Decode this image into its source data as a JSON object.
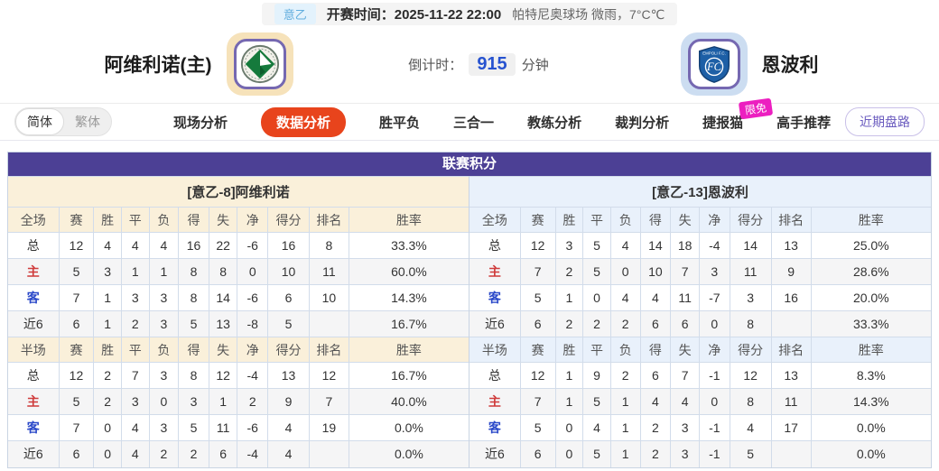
{
  "colors": {
    "title_purple": "#4c4095",
    "active_tab": "#e8441c",
    "home_theme": "#faf0da",
    "away_theme": "#e9f1fb",
    "home_label_red": "#cf3b3b",
    "away_label_blue": "#2b49c9",
    "badge_magenta": "#ec1fc0",
    "countdown_blue": "#2753d0"
  },
  "top_bar": {
    "league_badge": "意乙",
    "kickoff_label": "开赛时间：",
    "kickoff_time": "2025-11-22 22:00",
    "venue_weather": "帕特尼奥球场  微雨，7°C℃"
  },
  "match_header": {
    "home_team": "阿维利诺(主)",
    "away_team": "恩波利",
    "countdown_label": "倒计时：",
    "countdown_value": "915",
    "countdown_unit": "分钟"
  },
  "nav": {
    "lang_toggle": {
      "simplified": "简体",
      "traditional": "繁体"
    },
    "tabs": [
      {
        "label": "现场分析",
        "active": false
      },
      {
        "label": "数据分析",
        "active": true
      },
      {
        "label": "胜平负",
        "active": false
      },
      {
        "label": "三合一",
        "active": false
      },
      {
        "label": "教练分析",
        "active": false
      },
      {
        "label": "裁判分析",
        "active": false
      },
      {
        "label": "捷报猫",
        "active": false,
        "badge": "限免"
      },
      {
        "label": "高手推荐",
        "active": false
      }
    ],
    "recent_odds_button": "近期盘路"
  },
  "league_table": {
    "title": "联赛积分",
    "columns_full": [
      "全场",
      "赛",
      "胜",
      "平",
      "负",
      "得",
      "失",
      "净",
      "得分",
      "排名",
      "胜率"
    ],
    "columns_half": [
      "半场",
      "赛",
      "胜",
      "平",
      "负",
      "得",
      "失",
      "净",
      "得分",
      "排名",
      "胜率"
    ],
    "home": {
      "header": "[意乙-8]阿维利诺",
      "full": [
        {
          "label": "总",
          "cells": [
            "12",
            "4",
            "4",
            "4",
            "16",
            "22",
            "-6",
            "16",
            "8",
            "33.3%"
          ]
        },
        {
          "label": "主",
          "cells": [
            "5",
            "3",
            "1",
            "1",
            "8",
            "8",
            "0",
            "10",
            "11",
            "60.0%"
          ]
        },
        {
          "label": "客",
          "cells": [
            "7",
            "1",
            "3",
            "3",
            "8",
            "14",
            "-6",
            "6",
            "10",
            "14.3%"
          ]
        },
        {
          "label": "近6",
          "cells": [
            "6",
            "1",
            "2",
            "3",
            "5",
            "13",
            "-8",
            "5",
            "",
            "16.7%"
          ]
        }
      ],
      "half": [
        {
          "label": "总",
          "cells": [
            "12",
            "2",
            "7",
            "3",
            "8",
            "12",
            "-4",
            "13",
            "12",
            "16.7%"
          ]
        },
        {
          "label": "主",
          "cells": [
            "5",
            "2",
            "3",
            "0",
            "3",
            "1",
            "2",
            "9",
            "7",
            "40.0%"
          ]
        },
        {
          "label": "客",
          "cells": [
            "7",
            "0",
            "4",
            "3",
            "5",
            "11",
            "-6",
            "4",
            "19",
            "0.0%"
          ]
        },
        {
          "label": "近6",
          "cells": [
            "6",
            "0",
            "4",
            "2",
            "2",
            "6",
            "-4",
            "4",
            "",
            "0.0%"
          ]
        }
      ]
    },
    "away": {
      "header": "[意乙-13]恩波利",
      "full": [
        {
          "label": "总",
          "cells": [
            "12",
            "3",
            "5",
            "4",
            "14",
            "18",
            "-4",
            "14",
            "13",
            "25.0%"
          ]
        },
        {
          "label": "主",
          "cells": [
            "7",
            "2",
            "5",
            "0",
            "10",
            "7",
            "3",
            "11",
            "9",
            "28.6%"
          ]
        },
        {
          "label": "客",
          "cells": [
            "5",
            "1",
            "0",
            "4",
            "4",
            "11",
            "-7",
            "3",
            "16",
            "20.0%"
          ]
        },
        {
          "label": "近6",
          "cells": [
            "6",
            "2",
            "2",
            "2",
            "6",
            "6",
            "0",
            "8",
            "",
            "33.3%"
          ]
        }
      ],
      "half": [
        {
          "label": "总",
          "cells": [
            "12",
            "1",
            "9",
            "2",
            "6",
            "7",
            "-1",
            "12",
            "13",
            "8.3%"
          ]
        },
        {
          "label": "主",
          "cells": [
            "7",
            "1",
            "5",
            "1",
            "4",
            "4",
            "0",
            "8",
            "11",
            "14.3%"
          ]
        },
        {
          "label": "客",
          "cells": [
            "5",
            "0",
            "4",
            "1",
            "2",
            "3",
            "-1",
            "4",
            "17",
            "0.0%"
          ]
        },
        {
          "label": "近6",
          "cells": [
            "6",
            "0",
            "5",
            "1",
            "2",
            "3",
            "-1",
            "5",
            "",
            "0.0%"
          ]
        }
      ]
    }
  }
}
